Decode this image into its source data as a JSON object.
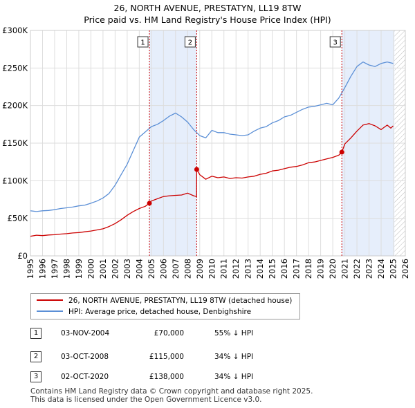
{
  "title_line1": "26, NORTH AVENUE, PRESTATYN, LL19 8TW",
  "title_line2": "Price paid vs. HM Land Registry's House Price Index (HPI)",
  "colors": {
    "property": "#cc0000",
    "hpi": "#5b8fd6",
    "shade": "#e6eefb",
    "grid": "#dddddd",
    "marker_line": "#cc0000"
  },
  "chart_data": {
    "type": "line",
    "title": "26, NORTH AVENUE, PRESTATYN, LL19 8TW — Price paid vs. HM Land Registry's House Price Index (HPI)",
    "xlabel": "",
    "ylabel": "",
    "xlim": [
      1995,
      2026
    ],
    "ylim": [
      0,
      300000
    ],
    "grid": true,
    "x_ticks": [
      "1995",
      "1996",
      "1997",
      "1998",
      "1999",
      "2000",
      "2001",
      "2002",
      "2003",
      "2004",
      "2005",
      "2006",
      "2007",
      "2008",
      "2009",
      "2010",
      "2011",
      "2012",
      "2013",
      "2014",
      "2015",
      "2016",
      "2017",
      "2018",
      "2019",
      "2020",
      "2021",
      "2022",
      "2023",
      "2024",
      "2025",
      "2026"
    ],
    "y_ticks": [
      {
        "value": 0,
        "label": "£0"
      },
      {
        "value": 50000,
        "label": "£50K"
      },
      {
        "value": 100000,
        "label": "£100K"
      },
      {
        "value": 150000,
        "label": "£150K"
      },
      {
        "value": 200000,
        "label": "£200K"
      },
      {
        "value": 250000,
        "label": "£250K"
      },
      {
        "value": 300000,
        "label": "£300K"
      }
    ],
    "shaded_ranges": [
      [
        2004.84,
        2008.75
      ],
      [
        2020.75,
        2025.1
      ]
    ],
    "hatched_from": 2025.1,
    "series": [
      {
        "name": "26, NORTH AVENUE, PRESTATYN, LL19 8TW (detached house)",
        "color": "#cc0000",
        "x": [
          1995,
          1995.5,
          1996,
          1996.5,
          1997,
          1997.5,
          1998,
          1998.5,
          1999,
          1999.5,
          2000,
          2000.5,
          2001,
          2001.5,
          2002,
          2002.5,
          2003,
          2003.5,
          2004,
          2004.5,
          2004.84,
          2005,
          2005.5,
          2006,
          2006.5,
          2007,
          2007.5,
          2008,
          2008.5,
          2008.74,
          2008.75,
          2009,
          2009.5,
          2010,
          2010.5,
          2011,
          2011.5,
          2012,
          2012.5,
          2013,
          2013.5,
          2014,
          2014.5,
          2015,
          2015.5,
          2016,
          2016.5,
          2017,
          2017.5,
          2018,
          2018.5,
          2019,
          2019.5,
          2020,
          2020.5,
          2020.75,
          2021,
          2021.5,
          2022,
          2022.5,
          2023,
          2023.5,
          2024,
          2024.5,
          2024.8,
          2025
        ],
        "values": [
          26000,
          27500,
          27000,
          27800,
          28200,
          29000,
          29500,
          30500,
          31000,
          32000,
          33000,
          34500,
          36000,
          39000,
          43000,
          48000,
          54000,
          59000,
          63000,
          66000,
          70000,
          73000,
          76000,
          79000,
          80000,
          80500,
          81000,
          83500,
          80000,
          79000,
          115000,
          108000,
          102000,
          106000,
          104000,
          105000,
          103000,
          104000,
          103500,
          105000,
          106000,
          108500,
          110000,
          113000,
          114000,
          116000,
          118000,
          119000,
          121000,
          124000,
          125000,
          127000,
          129000,
          131000,
          134000,
          138000,
          149000,
          157000,
          166000,
          174000,
          176000,
          173000,
          168000,
          174000,
          170000,
          173000
        ]
      },
      {
        "name": "HPI: Average price, detached house, Denbighshire",
        "color": "#5b8fd6",
        "x": [
          1995,
          1995.5,
          1996,
          1996.5,
          1997,
          1997.5,
          1998,
          1998.5,
          1999,
          1999.5,
          2000,
          2000.5,
          2001,
          2001.5,
          2002,
          2002.5,
          2003,
          2003.5,
          2004,
          2004.5,
          2005,
          2005.5,
          2006,
          2006.5,
          2007,
          2007.5,
          2008,
          2008.5,
          2009,
          2009.5,
          2010,
          2010.5,
          2011,
          2011.5,
          2012,
          2012.5,
          2013,
          2013.5,
          2014,
          2014.5,
          2015,
          2015.5,
          2016,
          2016.5,
          2017,
          2017.5,
          2018,
          2018.5,
          2019,
          2019.5,
          2020,
          2020.5,
          2021,
          2021.5,
          2022,
          2022.5,
          2023,
          2023.5,
          2024,
          2024.5,
          2025
        ],
        "values": [
          60000,
          59000,
          60000,
          60500,
          61500,
          63000,
          64000,
          65000,
          66500,
          67500,
          70000,
          73000,
          77000,
          83000,
          94000,
          108000,
          122000,
          140000,
          158000,
          165000,
          172000,
          175000,
          180000,
          186000,
          190000,
          185000,
          178000,
          168000,
          160000,
          157000,
          167000,
          164000,
          164000,
          162000,
          161000,
          160000,
          161000,
          166000,
          170000,
          172000,
          177000,
          180000,
          185000,
          187000,
          191000,
          195000,
          198000,
          199000,
          201000,
          203000,
          201000,
          210000,
          224000,
          239000,
          252000,
          258000,
          254000,
          252000,
          256000,
          258000,
          256000
        ]
      }
    ],
    "transactions": [
      {
        "id": "1",
        "x": 2004.84,
        "value": 70000
      },
      {
        "id": "2",
        "x": 2008.75,
        "value": 115000
      },
      {
        "id": "3",
        "x": 2020.75,
        "value": 138000
      }
    ]
  },
  "legend": {
    "property_label": "26, NORTH AVENUE, PRESTATYN, LL19 8TW (detached house)",
    "hpi_label": "HPI: Average price, detached house, Denbighshire"
  },
  "transactions_table": [
    {
      "num": "1",
      "date": "03-NOV-2004",
      "price": "£70,000",
      "hpi": "55% ↓ HPI"
    },
    {
      "num": "2",
      "date": "03-OCT-2008",
      "price": "£115,000",
      "hpi": "34% ↓ HPI"
    },
    {
      "num": "3",
      "date": "02-OCT-2020",
      "price": "£138,000",
      "hpi": "34% ↓ HPI"
    }
  ],
  "footer": {
    "line1": "Contains HM Land Registry data © Crown copyright and database right 2025.",
    "line2": "This data is licensed under the Open Government Licence v3.0."
  }
}
